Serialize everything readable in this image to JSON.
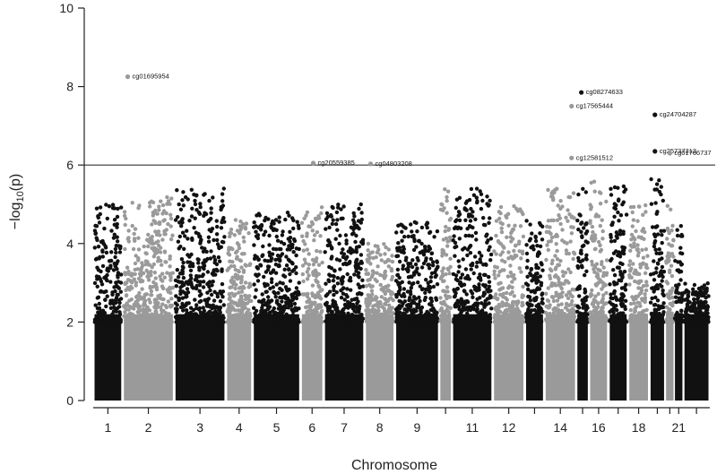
{
  "chart_data": {
    "type": "scatter",
    "xlabel": "Chromosome",
    "ylabel_prefix": "−log",
    "ylabel_sub": "10",
    "ylabel_suffix": "(p)",
    "ylim": [
      0,
      10
    ],
    "yticks": [
      0,
      2,
      4,
      6,
      8,
      10
    ],
    "significance_threshold": 6,
    "chromosome_tick_labels": [
      "1",
      "2",
      "3",
      "4",
      "5",
      "6",
      "7",
      "8",
      "9",
      "11",
      "12",
      "14",
      "16",
      "18",
      "21"
    ],
    "colors": {
      "dark": "#111111",
      "light": "#9a9a9a",
      "axis": "#222222"
    },
    "chromosomes": [
      {
        "chr": 1,
        "tone": "dark",
        "peak": 5.0,
        "label": "1"
      },
      {
        "chr": 2,
        "tone": "light",
        "peak": 5.2,
        "label": "2"
      },
      {
        "chr": 3,
        "tone": "dark",
        "peak": 5.4,
        "label": "3"
      },
      {
        "chr": 4,
        "tone": "light",
        "peak": 4.6,
        "label": "4"
      },
      {
        "chr": 5,
        "tone": "dark",
        "peak": 4.8,
        "label": "5"
      },
      {
        "chr": 6,
        "tone": "light",
        "peak": 5.0,
        "label": "6"
      },
      {
        "chr": 7,
        "tone": "dark",
        "peak": 5.0,
        "label": "7"
      },
      {
        "chr": 8,
        "tone": "light",
        "peak": 4.0,
        "label": "8"
      },
      {
        "chr": 9,
        "tone": "dark",
        "peak": 4.6,
        "label": "9"
      },
      {
        "chr": 10,
        "tone": "light",
        "peak": 5.4,
        "label": ""
      },
      {
        "chr": 11,
        "tone": "dark",
        "peak": 5.4,
        "label": "11"
      },
      {
        "chr": 12,
        "tone": "light",
        "peak": 5.0,
        "label": "12"
      },
      {
        "chr": 13,
        "tone": "dark",
        "peak": 4.6,
        "label": ""
      },
      {
        "chr": 14,
        "tone": "light",
        "peak": 5.4,
        "label": "14"
      },
      {
        "chr": 15,
        "tone": "dark",
        "peak": 5.4,
        "label": ""
      },
      {
        "chr": 16,
        "tone": "light",
        "peak": 5.6,
        "label": "16"
      },
      {
        "chr": 17,
        "tone": "dark",
        "peak": 5.5,
        "label": ""
      },
      {
        "chr": 18,
        "tone": "light",
        "peak": 5.0,
        "label": "18"
      },
      {
        "chr": 19,
        "tone": "dark",
        "peak": 5.8,
        "label": ""
      },
      {
        "chr": 20,
        "tone": "light",
        "peak": 5.0,
        "label": ""
      },
      {
        "chr": 21,
        "tone": "dark",
        "peak": 4.5,
        "label": "21"
      },
      {
        "chr": 22,
        "tone": "dark",
        "peak": 3.0,
        "label": ""
      }
    ],
    "significant_probes": [
      {
        "name": "cg01695954",
        "chr": 2,
        "pos": 0.1,
        "y": 8.25,
        "tone": "light"
      },
      {
        "name": "cg20559385",
        "chr": 6,
        "pos": 0.55,
        "y": 6.05,
        "tone": "light"
      },
      {
        "name": "cg04803208",
        "chr": 8,
        "pos": 0.2,
        "y": 6.03,
        "tone": "light"
      },
      {
        "name": "cg08274633",
        "chr": 15,
        "pos": 0.4,
        "y": 7.85,
        "tone": "dark"
      },
      {
        "name": "cg17565444",
        "chr": 14,
        "pos": 0.85,
        "y": 7.5,
        "tone": "light"
      },
      {
        "name": "cg12581512",
        "chr": 14,
        "pos": 0.85,
        "y": 6.18,
        "tone": "light"
      },
      {
        "name": "cg24704287",
        "chr": 19,
        "pos": 0.35,
        "y": 7.28,
        "tone": "dark"
      },
      {
        "name": "cg25737313",
        "chr": 19,
        "pos": 0.35,
        "y": 6.35,
        "tone": "dark"
      },
      {
        "name": "cg01766737",
        "chr": 20,
        "pos": 0.5,
        "y": 6.3,
        "tone": "light"
      }
    ]
  }
}
